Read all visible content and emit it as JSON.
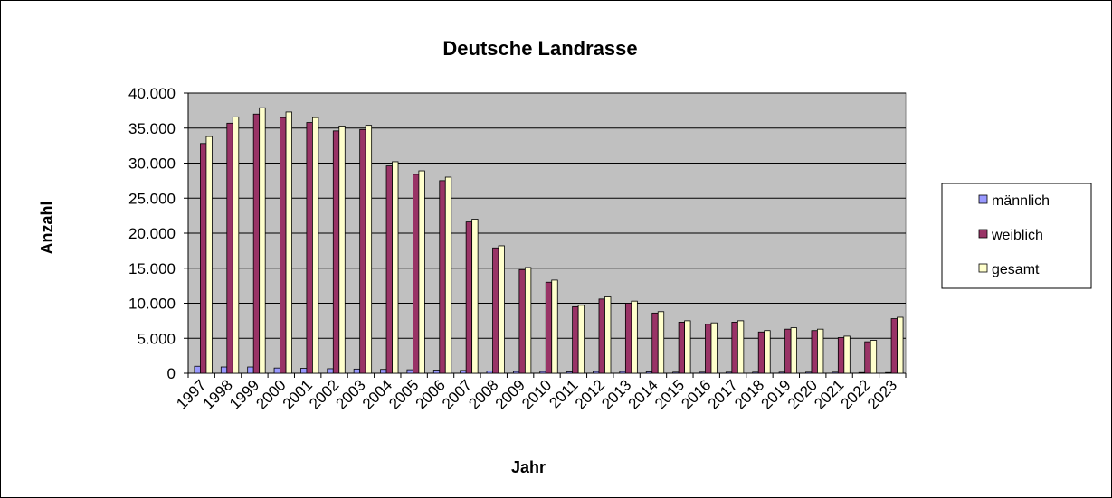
{
  "chart_data": {
    "type": "bar",
    "title": "Deutsche Landrasse",
    "xlabel": "Jahr",
    "ylabel": "Anzahl",
    "ylim": [
      0,
      40000
    ],
    "yticks": [
      0,
      5000,
      10000,
      15000,
      20000,
      25000,
      30000,
      35000,
      40000
    ],
    "ytick_labels": [
      "0",
      "5.000",
      "10.000",
      "15.000",
      "20.000",
      "25.000",
      "30.000",
      "35.000",
      "40.000"
    ],
    "grid": true,
    "legend_position": "right",
    "categories": [
      "1997",
      "1998",
      "1999",
      "2000",
      "2001",
      "2002",
      "2003",
      "2004",
      "2005",
      "2006",
      "2007",
      "2008",
      "2009",
      "2010",
      "2011",
      "2012",
      "2013",
      "2014",
      "2015",
      "2016",
      "2017",
      "2018",
      "2019",
      "2020",
      "2021",
      "2022",
      "2023"
    ],
    "series": [
      {
        "name": "männlich",
        "color": "#9999ff",
        "values": [
          1000,
          900,
          900,
          750,
          700,
          650,
          600,
          550,
          500,
          450,
          400,
          300,
          250,
          250,
          200,
          250,
          250,
          200,
          150,
          150,
          150,
          150,
          150,
          150,
          150,
          100,
          100
        ]
      },
      {
        "name": "weiblich",
        "color": "#993366",
        "values": [
          32800,
          35700,
          37000,
          36500,
          35800,
          34600,
          34800,
          29600,
          28400,
          27500,
          21600,
          17900,
          14800,
          13000,
          9500,
          10600,
          10000,
          8600,
          7300,
          7000,
          7300,
          5900,
          6300,
          6100,
          5100,
          4500,
          7800
        ]
      },
      {
        "name": "gesamt",
        "color": "#ffffcc",
        "values": [
          33800,
          36600,
          37900,
          37300,
          36500,
          35300,
          35400,
          30200,
          28900,
          28000,
          22000,
          18200,
          15100,
          13300,
          9700,
          10900,
          10300,
          8800,
          7500,
          7200,
          7500,
          6100,
          6500,
          6300,
          5300,
          4700,
          8000
        ]
      }
    ]
  }
}
